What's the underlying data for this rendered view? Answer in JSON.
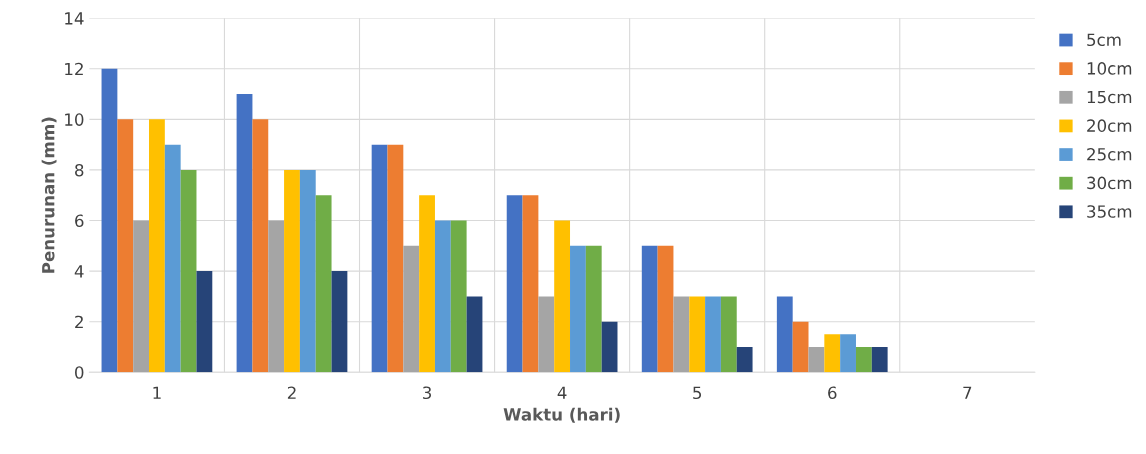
{
  "chart_data": {
    "type": "bar",
    "xlabel": "Waktu (hari)",
    "ylabel": "Penurunan (mm)",
    "categories": [
      "1",
      "2",
      "3",
      "4",
      "5",
      "6",
      "7"
    ],
    "series": [
      {
        "name": "5cm",
        "color": "#4472c4",
        "values": [
          12,
          11,
          9,
          7,
          5,
          3,
          0
        ]
      },
      {
        "name": "10cm",
        "color": "#ed7d31",
        "values": [
          10,
          10,
          9,
          7,
          5,
          2,
          0
        ]
      },
      {
        "name": "15cm",
        "color": "#a5a5a5",
        "values": [
          6,
          6,
          5,
          3,
          3,
          1,
          0
        ]
      },
      {
        "name": "20cm",
        "color": "#ffc000",
        "values": [
          10,
          8,
          7,
          6,
          3,
          1.5,
          0
        ]
      },
      {
        "name": "25cm",
        "color": "#5b9bd5",
        "values": [
          9,
          8,
          6,
          5,
          3,
          1.5,
          0
        ]
      },
      {
        "name": "30cm",
        "color": "#70ad47",
        "values": [
          8,
          7,
          6,
          5,
          3,
          1,
          0
        ]
      },
      {
        "name": "35cm",
        "color": "#264478",
        "values": [
          4,
          4,
          3,
          2,
          1,
          1,
          0
        ]
      }
    ],
    "ylim": [
      0,
      14
    ],
    "yticks": [
      0,
      2,
      4,
      6,
      8,
      10,
      12,
      14
    ],
    "grid": true,
    "legend": "right"
  }
}
